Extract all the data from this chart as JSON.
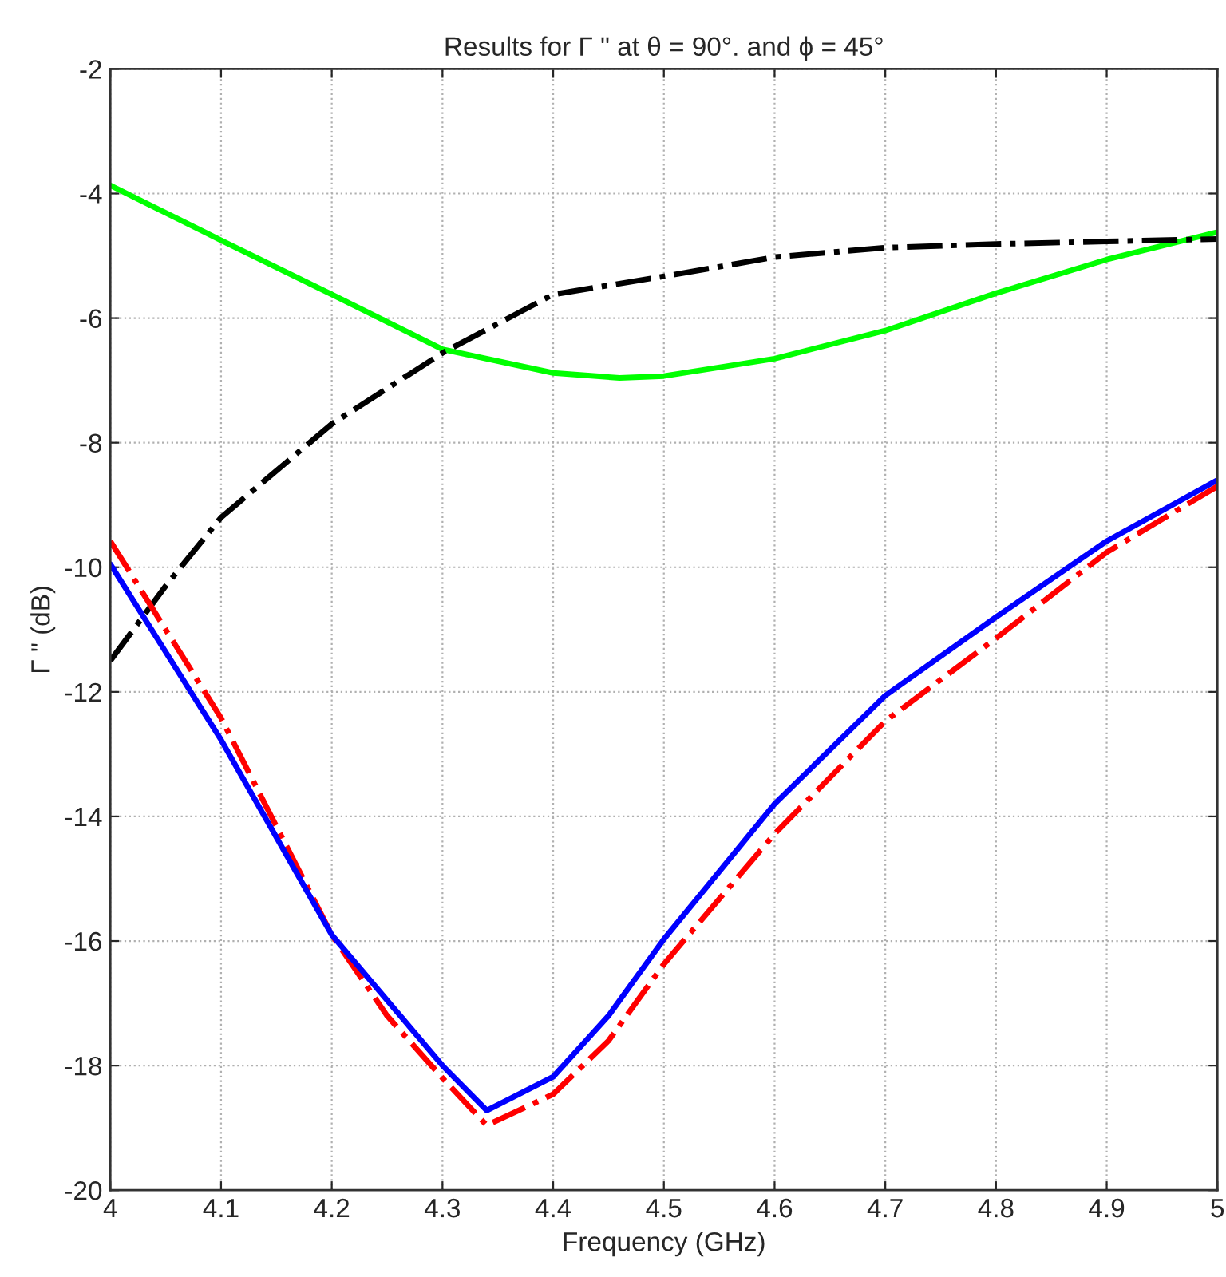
{
  "chart_data": {
    "type": "line",
    "title": "Results for Γ \" at θ = 90°. and ϕ = 45°",
    "xlabel": "Frequency (GHz)",
    "ylabel": "Γ \" (dB)",
    "xlim": [
      4,
      5
    ],
    "ylim": [
      -20,
      -2
    ],
    "xticks": [
      4,
      4.1,
      4.2,
      4.3,
      4.4,
      4.5,
      4.6,
      4.7,
      4.8,
      4.9,
      5
    ],
    "yticks": [
      -20,
      -18,
      -16,
      -14,
      -12,
      -10,
      -8,
      -6,
      -4,
      -2
    ],
    "grid": true,
    "series": [
      {
        "color": "#00ff00",
        "line_style": "solid",
        "x": [
          4.0,
          4.1,
          4.2,
          4.3,
          4.4,
          4.46,
          4.5,
          4.6,
          4.7,
          4.8,
          4.9,
          5.0
        ],
        "values": [
          -3.87,
          -4.75,
          -5.62,
          -6.5,
          -6.88,
          -6.96,
          -6.93,
          -6.65,
          -6.2,
          -5.6,
          -5.06,
          -4.62
        ]
      },
      {
        "color": "#000000",
        "line_style": "dashdot",
        "x": [
          4.0,
          4.05,
          4.1,
          4.2,
          4.3,
          4.4,
          4.5,
          4.6,
          4.7,
          4.8,
          4.9,
          5.0
        ],
        "values": [
          -11.5,
          -10.3,
          -9.2,
          -7.7,
          -6.56,
          -5.62,
          -5.33,
          -5.02,
          -4.87,
          -4.81,
          -4.77,
          -4.73
        ]
      },
      {
        "color": "#ff0000",
        "line_style": "dashdot",
        "x": [
          4.0,
          4.1,
          4.2,
          4.25,
          4.3,
          4.34,
          4.4,
          4.45,
          4.5,
          4.6,
          4.7,
          4.8,
          4.9,
          5.0
        ],
        "values": [
          -9.58,
          -12.42,
          -15.9,
          -17.2,
          -18.2,
          -18.96,
          -18.46,
          -17.6,
          -16.37,
          -14.28,
          -12.47,
          -11.14,
          -9.76,
          -8.7
        ]
      },
      {
        "color": "#0000ff",
        "line_style": "solid",
        "x": [
          4.0,
          4.1,
          4.2,
          4.25,
          4.3,
          4.34,
          4.4,
          4.45,
          4.5,
          4.6,
          4.7,
          4.8,
          4.9,
          5.0
        ],
        "values": [
          -9.95,
          -12.77,
          -15.9,
          -16.95,
          -18.0,
          -18.72,
          -18.18,
          -17.2,
          -15.97,
          -13.8,
          -12.06,
          -10.8,
          -9.58,
          -8.6
        ]
      }
    ]
  }
}
